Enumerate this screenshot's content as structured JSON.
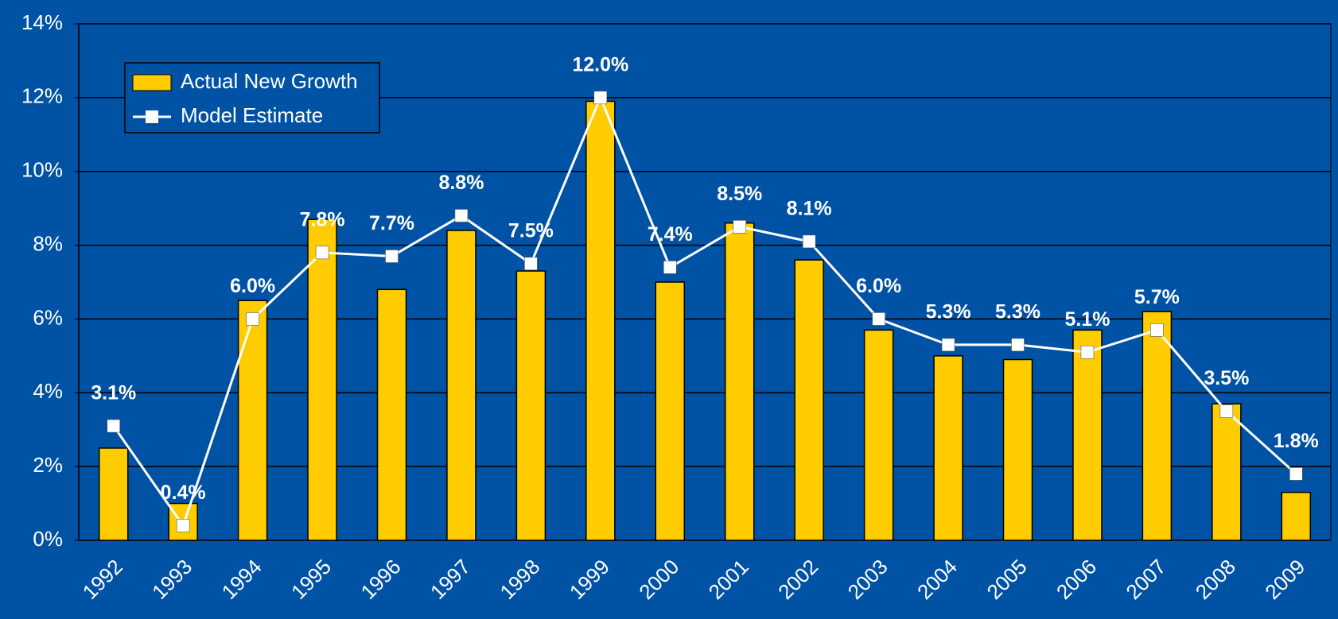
{
  "chart_data": {
    "type": "bar_line",
    "categories": [
      "1992",
      "1993",
      "1994",
      "1995",
      "1996",
      "1997",
      "1998",
      "1999",
      "2000",
      "2001",
      "2002",
      "2003",
      "2004",
      "2005",
      "2006",
      "2007",
      "2008",
      "2009"
    ],
    "series": [
      {
        "name": "Actual New Growth",
        "type": "bar",
        "color": "#ffcc00",
        "values": [
          2.5,
          1.0,
          6.5,
          8.7,
          6.8,
          8.4,
          7.3,
          11.9,
          7.0,
          8.6,
          7.6,
          5.7,
          5.0,
          4.9,
          5.7,
          6.2,
          3.7,
          1.3
        ]
      },
      {
        "name": "Model Estimate",
        "type": "line",
        "color": "#ffffff",
        "values": [
          3.1,
          0.4,
          6.0,
          7.8,
          7.7,
          8.8,
          7.5,
          12.0,
          7.4,
          8.5,
          8.1,
          6.0,
          5.3,
          5.3,
          5.1,
          5.7,
          3.5,
          1.8
        ],
        "value_labels": [
          "3.1%",
          "0.4%",
          "6.0%",
          "7.8%",
          "7.7%",
          "8.8%",
          "7.5%",
          "12.0%",
          "7.4%",
          "8.5%",
          "8.1%",
          "6.0%",
          "5.3%",
          "5.3%",
          "5.1%",
          "5.7%",
          "3.5%",
          "1.8%"
        ]
      }
    ],
    "ylim": [
      0,
      14
    ],
    "yticks": [
      {
        "value": 0,
        "label": "0%"
      },
      {
        "value": 2,
        "label": "2%"
      },
      {
        "value": 4,
        "label": "4%"
      },
      {
        "value": 6,
        "label": "6%"
      },
      {
        "value": 8,
        "label": "8%"
      },
      {
        "value": 10,
        "label": "10%"
      },
      {
        "value": 12,
        "label": "12%"
      },
      {
        "value": 14,
        "label": "14%"
      }
    ],
    "grid": true,
    "legend": "upper left"
  }
}
